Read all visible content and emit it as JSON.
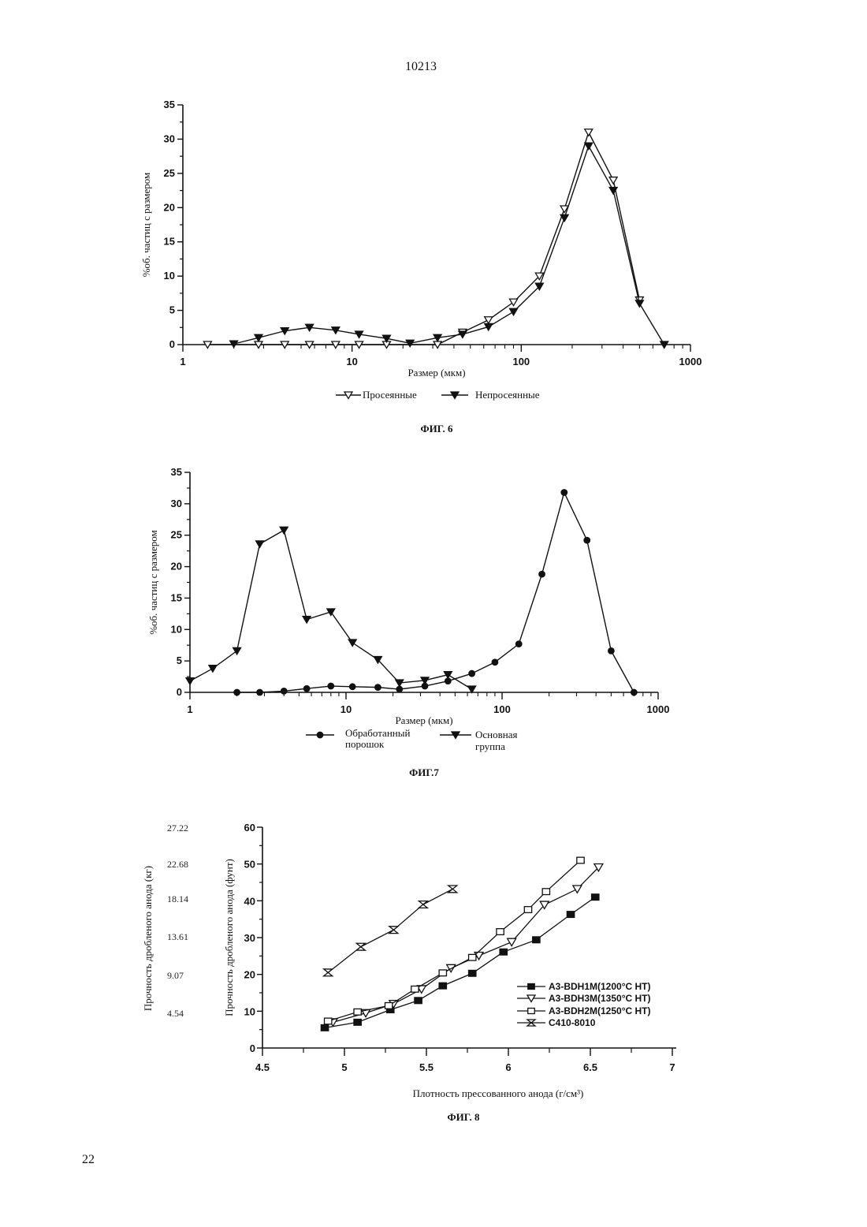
{
  "page": {
    "header": "10213",
    "footer": "22"
  },
  "chart_data": [
    {
      "type": "line",
      "caption": "ФИГ. 6",
      "xlabel": "Размер (мкм)",
      "ylabel": "%об. частиц с размером",
      "xscale": "log",
      "xlim": [
        1,
        1000
      ],
      "ylim": [
        0,
        35
      ],
      "xticks": [
        "1",
        "10",
        "100",
        "1000"
      ],
      "yticks": [
        "0",
        "5",
        "10",
        "15",
        "20",
        "25",
        "30",
        "35"
      ],
      "legend": "bottom",
      "series": [
        {
          "name": "Просеянные",
          "marker": "triangle-down-open",
          "x": [
            1.4,
            2.8,
            4,
            5.6,
            8,
            11,
            16,
            32,
            45,
            64,
            90,
            128,
            180,
            250,
            350,
            500
          ],
          "y": [
            0,
            0,
            0,
            0,
            0,
            0,
            0,
            0,
            1.8,
            3.6,
            6.2,
            10,
            19.8,
            31,
            24,
            6.5
          ]
        },
        {
          "name": "Непросеянные",
          "marker": "triangle-down-filled",
          "x": [
            2,
            2.8,
            4,
            5.6,
            8,
            11,
            16,
            22,
            32,
            45,
            64,
            90,
            128,
            180,
            250,
            350,
            500,
            700
          ],
          "y": [
            0.1,
            1,
            2,
            2.5,
            2.1,
            1.5,
            0.9,
            0.2,
            1,
            1.5,
            2.6,
            4.8,
            8.5,
            18.5,
            29,
            22.5,
            6,
            0
          ]
        }
      ]
    },
    {
      "type": "line",
      "caption": "ФИГ.7",
      "xlabel": "Размер (мкм)",
      "ylabel": "%об. частиц с размером",
      "xscale": "log",
      "xlim": [
        1,
        1000
      ],
      "ylim": [
        0,
        35
      ],
      "xticks": [
        "1",
        "10",
        "100",
        "1000"
      ],
      "yticks": [
        "0",
        "5",
        "10",
        "15",
        "20",
        "25",
        "30",
        "35"
      ],
      "legend": "bottom",
      "series": [
        {
          "name": "Обработанный порошок",
          "name_lines": [
            "Обработанный",
            "порошок"
          ],
          "marker": "circle-filled",
          "x": [
            2,
            2.8,
            4,
            5.6,
            8,
            11,
            16,
            22,
            32,
            45,
            64,
            90,
            128,
            180,
            250,
            350,
            500,
            700
          ],
          "y": [
            0,
            0,
            0.2,
            0.6,
            1,
            0.9,
            0.8,
            0.5,
            1,
            1.8,
            3,
            4.8,
            7.7,
            18.8,
            31.8,
            24.2,
            6.6,
            0
          ]
        },
        {
          "name": "Основная группа",
          "name_lines": [
            "Основная",
            "группа"
          ],
          "marker": "triangle-down-filled",
          "x": [
            1,
            1.4,
            2,
            2.8,
            4,
            5.6,
            8,
            11,
            16,
            22,
            32,
            45,
            64
          ],
          "y": [
            1.8,
            3.8,
            6.6,
            23.6,
            25.8,
            11.6,
            12.8,
            7.9,
            5.2,
            1.5,
            1.9,
            2.8,
            0.5
          ]
        }
      ]
    },
    {
      "type": "line",
      "caption": "ФИГ. 8",
      "xlabel": "Плотность прессованного анода (г/см³)",
      "ylabel": "Прочность дробленого анода (фунт)",
      "y2label": "Прочность дробленого анода (кг)",
      "xlim": [
        4.5,
        7
      ],
      "ylim": [
        0,
        60
      ],
      "xticks": [
        "4.5",
        "5",
        "5.5",
        "6",
        "6.5",
        "7"
      ],
      "yticks": [
        "0",
        "10",
        "20",
        "30",
        "40",
        "50",
        "60"
      ],
      "y2ticks": [
        "27.22",
        "22.68",
        "18.14",
        "13.61",
        "9.07",
        "4.54"
      ],
      "legend": "right",
      "series": [
        {
          "name": "A3-BDH1M(1200°C HT)",
          "marker": "square-filled",
          "x": [
            4.88,
            5.08,
            5.28,
            5.45,
            5.6,
            5.78,
            5.97,
            6.17,
            6.38,
            6.53
          ],
          "y": [
            5.5,
            7,
            10.4,
            12.9,
            16.9,
            20.3,
            26.1,
            29.4,
            36.3,
            41
          ]
        },
        {
          "name": "A3-BDH3M(1350°C HT)",
          "marker": "triangle-down-open",
          "x": [
            4.93,
            5.13,
            5.3,
            5.47,
            5.65,
            5.82,
            6.02,
            6.22,
            6.42,
            6.55
          ],
          "y": [
            7,
            9.5,
            12,
            16,
            21.7,
            25.1,
            28.8,
            38.9,
            43.2,
            49.1
          ]
        },
        {
          "name": "A3-BDH2M(1250°C HT)",
          "marker": "square-open",
          "x": [
            4.9,
            5.08,
            5.27,
            5.43,
            5.6,
            5.78,
            5.95,
            6.12,
            6.23,
            6.44
          ],
          "y": [
            7.3,
            9.8,
            11.5,
            16,
            20.4,
            24.6,
            31.6,
            37.6,
            42.5,
            51
          ]
        },
        {
          "name": "C410-8010",
          "marker": "hourglass",
          "x": [
            4.9,
            5.1,
            5.3,
            5.48,
            5.66
          ],
          "y": [
            20.5,
            27.5,
            32.1,
            39,
            43.2
          ]
        }
      ]
    }
  ]
}
